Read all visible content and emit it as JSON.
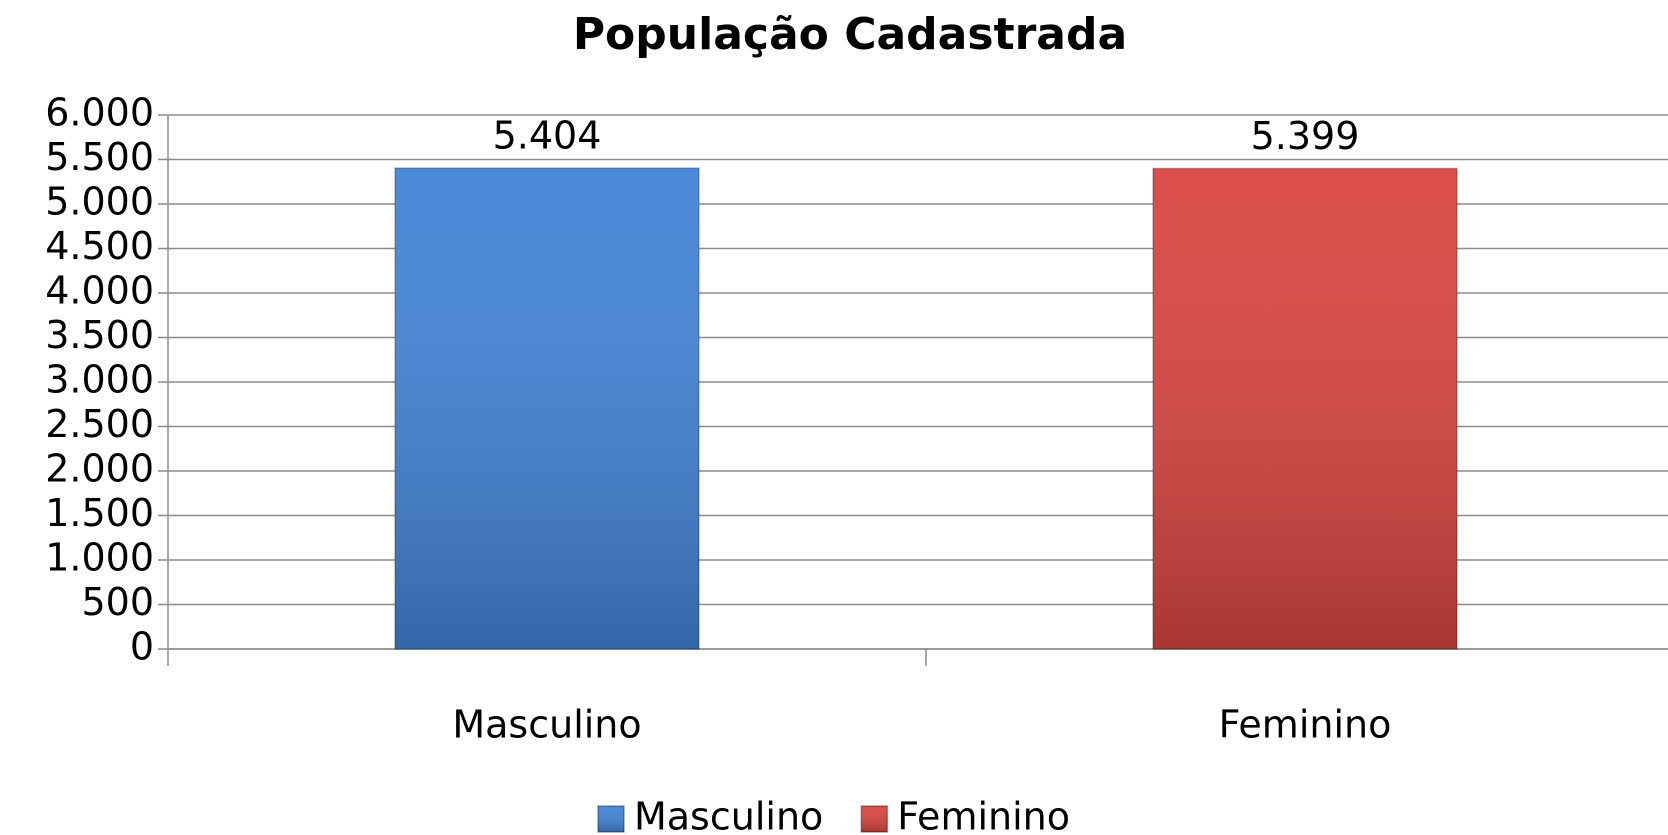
{
  "chart_data": {
    "type": "bar",
    "title": "População Cadastrada",
    "categories": [
      "Masculino",
      "Feminino"
    ],
    "values": [
      5404,
      5399
    ],
    "value_labels": [
      "5.404",
      "5.399"
    ],
    "colors": [
      "#4384d6",
      "#d94541"
    ],
    "ylim": [
      0,
      6000
    ],
    "yticks": [
      0,
      500,
      {
        "value": 1000,
        "label": "1.000"
      },
      {
        "value": 1500,
        "label": "1.500"
      },
      {
        "value": 2000,
        "label": "2.000"
      },
      {
        "value": 2500,
        "label": "2.500"
      },
      {
        "value": 3000,
        "label": "3.000"
      },
      {
        "value": 3500,
        "label": "3.500"
      },
      {
        "value": 4000,
        "label": "4.000"
      },
      {
        "value": 4500,
        "label": "4.500"
      },
      {
        "value": 5000,
        "label": "5.000"
      },
      {
        "value": 5500,
        "label": "5.500"
      },
      {
        "value": 6000,
        "label": "6.000"
      }
    ],
    "grid": true,
    "legend": "bottom"
  }
}
